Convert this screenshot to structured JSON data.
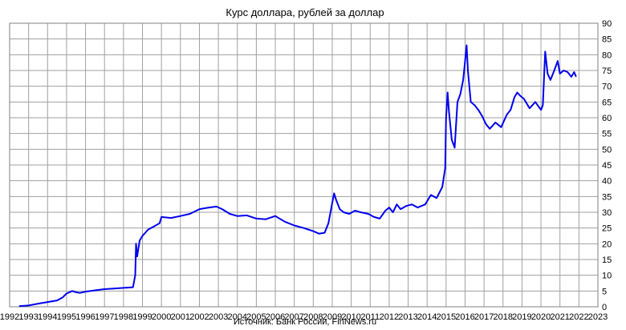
{
  "chart_data": {
    "type": "line",
    "title": "Курс доллара,  рублей  за доллар",
    "source": "Источник: Банк России, FinNews.ru",
    "xlabel": "",
    "ylabel": "",
    "xlim": [
      1992,
      2023
    ],
    "ylim": [
      0,
      90
    ],
    "x_ticks": [
      1992,
      1993,
      1994,
      1995,
      1996,
      1997,
      1998,
      1999,
      2000,
      2001,
      2002,
      2003,
      2004,
      2005,
      2006,
      2007,
      2008,
      2009,
      2010,
      2011,
      2012,
      2013,
      2014,
      2015,
      2016,
      2017,
      2018,
      2019,
      2020,
      2021,
      2022,
      2023
    ],
    "y_ticks": [
      0,
      5,
      10,
      15,
      20,
      25,
      30,
      35,
      40,
      45,
      50,
      55,
      60,
      65,
      70,
      75,
      80,
      85,
      90
    ],
    "y_axis_side": "right",
    "grid": true,
    "line_color": "#0000ee",
    "series": [
      {
        "x": [
          1992.5,
          1993.0,
          1993.5,
          1994.0,
          1994.5,
          1994.8,
          1995.0,
          1995.3,
          1995.5,
          1995.7,
          1996.0,
          1996.5,
          1997.0,
          1997.5,
          1998.0,
          1998.5,
          1998.62,
          1998.66,
          1998.72,
          1998.85,
          1999.0,
          1999.3,
          1999.6,
          1999.9,
          2000.0,
          2000.5,
          2001.0,
          2001.5,
          2002.0,
          2002.5,
          2002.9,
          2003.2,
          2003.6,
          2004.0,
          2004.5,
          2005.0,
          2005.5,
          2006.0,
          2006.5,
          2007.0,
          2007.5,
          2008.0,
          2008.3,
          2008.6,
          2008.8,
          2009.0,
          2009.1,
          2009.2,
          2009.4,
          2009.6,
          2009.9,
          2010.2,
          2010.5,
          2010.9,
          2011.2,
          2011.5,
          2011.8,
          2012.0,
          2012.2,
          2012.4,
          2012.6,
          2012.9,
          2013.2,
          2013.5,
          2013.9,
          2014.2,
          2014.5,
          2014.8,
          2014.95,
          2015.0,
          2015.08,
          2015.15,
          2015.3,
          2015.45,
          2015.6,
          2015.75,
          2015.9,
          2016.0,
          2016.08,
          2016.15,
          2016.3,
          2016.5,
          2016.7,
          2016.9,
          2017.1,
          2017.3,
          2017.6,
          2017.9,
          2018.2,
          2018.4,
          2018.6,
          2018.75,
          2018.9,
          2019.1,
          2019.4,
          2019.7,
          2020.0,
          2020.1,
          2020.22,
          2020.35,
          2020.5,
          2020.7,
          2020.88,
          2021.0,
          2021.2,
          2021.4,
          2021.6,
          2021.75,
          2021.85
        ],
        "y": [
          0.2,
          0.4,
          1.0,
          1.5,
          2.0,
          3.0,
          4.2,
          5.0,
          4.6,
          4.4,
          4.8,
          5.2,
          5.6,
          5.8,
          6.0,
          6.2,
          10.0,
          20.0,
          16.0,
          21.0,
          22.5,
          24.5,
          25.5,
          26.5,
          28.5,
          28.2,
          28.8,
          29.5,
          31.0,
          31.5,
          31.8,
          31.0,
          29.5,
          28.8,
          29.0,
          28.0,
          27.8,
          28.8,
          27.0,
          25.8,
          25.0,
          24.0,
          23.2,
          23.5,
          26.5,
          33.0,
          36.0,
          34.0,
          31.0,
          30.0,
          29.5,
          30.5,
          30.0,
          29.5,
          28.5,
          28.0,
          30.5,
          31.5,
          30.0,
          32.5,
          31.0,
          32.0,
          32.5,
          31.5,
          32.5,
          35.5,
          34.5,
          38.0,
          44.0,
          60.0,
          68.0,
          62.0,
          53.0,
          50.5,
          65.0,
          67.5,
          72.0,
          78.0,
          83.0,
          75.0,
          65.0,
          64.0,
          62.5,
          60.5,
          58.0,
          56.5,
          58.5,
          57.0,
          61.0,
          62.5,
          66.5,
          68.0,
          67.0,
          66.0,
          63.0,
          65.0,
          62.5,
          64.0,
          81.0,
          74.0,
          72.0,
          75.0,
          78.0,
          74.0,
          75.0,
          74.5,
          73.0,
          74.5,
          73.0
        ]
      }
    ]
  }
}
